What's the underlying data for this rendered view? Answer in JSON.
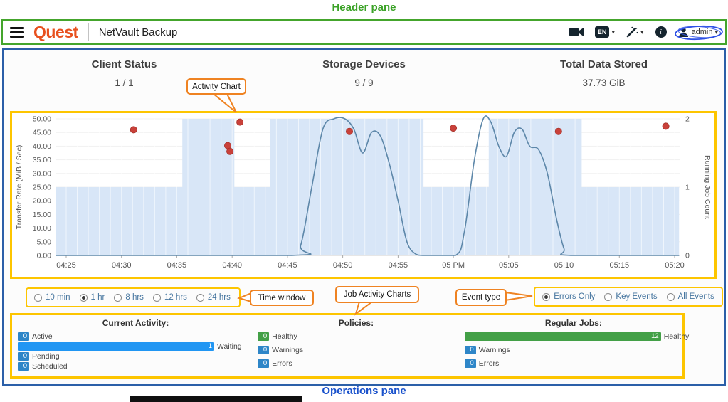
{
  "annotations": {
    "header_pane": "Header pane",
    "operations_pane": "Operations pane",
    "callouts": [
      {
        "text": "Activity Chart"
      },
      {
        "text": "Time window"
      },
      {
        "text": "Job Activity Charts"
      },
      {
        "text": "Event type"
      }
    ],
    "callout_color": "#ef8322",
    "highlight_color": "#fdc500",
    "header_outline_color": "#44a52c",
    "ops_outline_color": "#2b5fa8"
  },
  "header": {
    "logo_text": "Quest",
    "app_title": "NetVault Backup",
    "language_badge": "EN",
    "info_glyph": "i",
    "user_name": "admin",
    "caret": "▾"
  },
  "summary": {
    "items": [
      {
        "label": "Client Status",
        "value": "1 / 1"
      },
      {
        "label": "Storage Devices",
        "value": "9 / 9"
      },
      {
        "label": "Total Data Stored",
        "value": "37.73 GiB"
      }
    ]
  },
  "time_window": {
    "options": [
      {
        "label": "10 min",
        "selected": false
      },
      {
        "label": "1 hr",
        "selected": true
      },
      {
        "label": "8 hrs",
        "selected": false
      },
      {
        "label": "12 hrs",
        "selected": false
      },
      {
        "label": "24 hrs",
        "selected": false
      }
    ]
  },
  "event_filter": {
    "options": [
      {
        "label": "Errors Only",
        "selected": true
      },
      {
        "label": "Key Events",
        "selected": false
      },
      {
        "label": "All Events",
        "selected": false
      }
    ]
  },
  "chart_data": {
    "type": "mixed",
    "x_axis": {
      "tick_labels": [
        "04:25",
        "04:30",
        "04:35",
        "04:40",
        "04:45",
        "04:50",
        "04:55",
        "05 PM",
        "05:05",
        "05:10",
        "05:15",
        "05:20"
      ],
      "tick_minutes": [
        0,
        5,
        10,
        15,
        20,
        25,
        30,
        35,
        40,
        45,
        50,
        55
      ]
    },
    "left_axis": {
      "label": "Transfer Rate (MiB / Sec)",
      "min": 0,
      "max": 50,
      "tick_step": 5
    },
    "right_axis": {
      "label": "Running Job Count",
      "min": 0,
      "max": 2,
      "ticks": [
        2,
        1,
        0
      ]
    },
    "transfer_rate_area": {
      "type": "area-step",
      "color": "#d8e6f7",
      "segments": [
        {
          "from": -0.9,
          "to": 10.5,
          "value": 25
        },
        {
          "from": 10.5,
          "to": 15.2,
          "value": 50
        },
        {
          "from": 15.2,
          "to": 18.4,
          "value": 25
        },
        {
          "from": 18.4,
          "to": 32.3,
          "value": 50
        },
        {
          "from": 32.3,
          "to": 38.2,
          "value": 25
        },
        {
          "from": 38.2,
          "to": 46.6,
          "value": 50
        },
        {
          "from": 46.6,
          "to": 55.4,
          "value": 25
        }
      ]
    },
    "running_jobs_line": {
      "type": "line",
      "color": "#5d87a9",
      "points": [
        [
          -0.9,
          0
        ],
        [
          20.3,
          0
        ],
        [
          21.2,
          0.15
        ],
        [
          22.2,
          1.0
        ],
        [
          23.2,
          1.85
        ],
        [
          24.2,
          2.0
        ],
        [
          25.2,
          2.0
        ],
        [
          26.0,
          1.85
        ],
        [
          26.8,
          1.5
        ],
        [
          27.6,
          1.8
        ],
        [
          28.4,
          1.75
        ],
        [
          29.2,
          1.35
        ],
        [
          30.0,
          0.8
        ],
        [
          30.8,
          0.2
        ],
        [
          31.6,
          0.02
        ],
        [
          32.4,
          0
        ],
        [
          35.2,
          0
        ],
        [
          36.0,
          0.35
        ],
        [
          36.9,
          1.4
        ],
        [
          37.7,
          2.0
        ],
        [
          38.4,
          1.95
        ],
        [
          39.1,
          1.6
        ],
        [
          39.8,
          1.45
        ],
        [
          40.5,
          1.8
        ],
        [
          41.2,
          1.85
        ],
        [
          41.9,
          1.6
        ],
        [
          42.7,
          1.55
        ],
        [
          43.5,
          1.2
        ],
        [
          44.3,
          0.55
        ],
        [
          45.0,
          0.1
        ],
        [
          45.6,
          0
        ],
        [
          55.4,
          0
        ]
      ]
    },
    "error_events": {
      "type": "scatter",
      "color": "#c9413a",
      "points": [
        [
          6.1,
          46.0
        ],
        [
          14.6,
          40.2
        ],
        [
          14.8,
          38.1
        ],
        [
          15.7,
          48.8
        ],
        [
          25.6,
          45.4
        ],
        [
          35.0,
          46.6
        ],
        [
          44.5,
          45.4
        ],
        [
          54.2,
          47.3
        ]
      ]
    }
  },
  "job_activity": {
    "groups": [
      {
        "title": "Current Activity:",
        "bars": [
          {
            "label": "Active",
            "value": 0,
            "color": "#2e86c8"
          },
          {
            "label": "Waiting",
            "value": 1,
            "color": "#2196f3"
          },
          {
            "label": "Pending",
            "value": 0,
            "color": "#2e86c8"
          },
          {
            "label": "Scheduled",
            "value": 0,
            "color": "#2e86c8"
          }
        ]
      },
      {
        "title": "Policies:",
        "bars": [
          {
            "label": "Healthy",
            "value": 0,
            "color": "#43a047"
          },
          {
            "label": "Warnings",
            "value": 0,
            "color": "#2e86c8"
          },
          {
            "label": "Errors",
            "value": 0,
            "color": "#2e86c8"
          }
        ]
      },
      {
        "title": "Regular Jobs:",
        "bars": [
          {
            "label": "Healthy",
            "value": 12,
            "color": "#43a047"
          },
          {
            "label": "Warnings",
            "value": 0,
            "color": "#2e86c8"
          },
          {
            "label": "Errors",
            "value": 0,
            "color": "#2e86c8"
          }
        ]
      }
    ]
  }
}
